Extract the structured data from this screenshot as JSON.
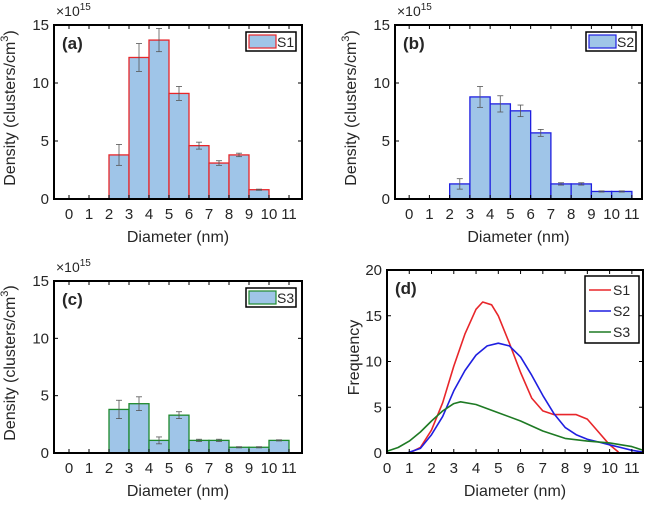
{
  "chart_data": [
    {
      "type": "bar",
      "panel_label": "(a)",
      "legend": "S1",
      "edge_color": "#e8262a",
      "fill_color": "#9fc5e8",
      "multiplier": "×10",
      "multiplier_exp": "15",
      "xlabel": "Diameter (nm)",
      "ylabel": "Density (clusters/cm",
      "ylabel_sup": "3",
      "ylabel_end": ")",
      "ylim": [
        0,
        15
      ],
      "xlim": [
        -0.75,
        11.65
      ],
      "xticks": [
        "0",
        "1",
        "2",
        "3",
        "4",
        "5",
        "6",
        "7",
        "8",
        "9",
        "10",
        "11"
      ],
      "yticks": [
        "0",
        "5",
        "10",
        "15"
      ],
      "bins": [
        [
          2,
          3
        ],
        [
          3,
          4
        ],
        [
          4,
          5
        ],
        [
          5,
          6
        ],
        [
          6,
          7
        ],
        [
          7,
          8
        ],
        [
          8,
          9
        ],
        [
          9,
          10
        ]
      ],
      "values": [
        3.8,
        12.2,
        13.7,
        9.1,
        4.6,
        3.1,
        3.8,
        0.8
      ],
      "errors": [
        0.9,
        1.2,
        1.0,
        0.6,
        0.3,
        0.2,
        0.15,
        0.05
      ]
    },
    {
      "type": "bar",
      "panel_label": "(b)",
      "legend": "S2",
      "edge_color": "#1f1fe0",
      "fill_color": "#9fc5e8",
      "multiplier": "×10",
      "multiplier_exp": "15",
      "xlabel": "Diameter (nm)",
      "ylabel": "Density (clusters/cm",
      "ylabel_sup": "3",
      "ylabel_end": ")",
      "ylim": [
        0,
        15
      ],
      "xlim": [
        -0.7,
        11.5
      ],
      "xticks": [
        "0",
        "1",
        "2",
        "3",
        "4",
        "5",
        "6",
        "7",
        "8",
        "9",
        "10",
        "11"
      ],
      "yticks": [
        "0",
        "5",
        "10",
        "15"
      ],
      "bins": [
        [
          2,
          3
        ],
        [
          3,
          4
        ],
        [
          4,
          5
        ],
        [
          5,
          6
        ],
        [
          6,
          7
        ],
        [
          7,
          8
        ],
        [
          8,
          9
        ],
        [
          9,
          10
        ],
        [
          10,
          11
        ]
      ],
      "values": [
        1.3,
        8.8,
        8.2,
        7.6,
        5.7,
        1.3,
        1.3,
        0.65,
        0.65
      ],
      "errors": [
        0.45,
        0.9,
        0.7,
        0.5,
        0.3,
        0.1,
        0.1,
        0.05,
        0.05
      ]
    },
    {
      "type": "bar",
      "panel_label": "(c)",
      "legend": "S3",
      "edge_color": "#1e8a2e",
      "fill_color": "#9fc5e8",
      "multiplier": "×10",
      "multiplier_exp": "15",
      "xlabel": "Diameter (nm)",
      "ylabel": "Density (clusters/cm",
      "ylabel_sup": "3",
      "ylabel_end": ")",
      "ylim": [
        0,
        15
      ],
      "xlim": [
        -0.75,
        11.65
      ],
      "xticks": [
        "0",
        "1",
        "2",
        "3",
        "4",
        "5",
        "6",
        "7",
        "8",
        "9",
        "10",
        "11"
      ],
      "yticks": [
        "0",
        "5",
        "10",
        "15"
      ],
      "bins": [
        [
          2,
          3
        ],
        [
          3,
          4
        ],
        [
          4,
          5
        ],
        [
          5,
          6
        ],
        [
          6,
          7
        ],
        [
          7,
          8
        ],
        [
          8,
          9
        ],
        [
          9,
          10
        ],
        [
          10,
          11
        ]
      ],
      "values": [
        3.8,
        4.3,
        1.1,
        3.3,
        1.1,
        1.1,
        0.5,
        0.5,
        1.1
      ],
      "errors": [
        0.8,
        0.6,
        0.3,
        0.3,
        0.1,
        0.1,
        0.05,
        0.05,
        0.05
      ]
    },
    {
      "type": "line",
      "panel_label": "(d)",
      "xlabel": "Diameter (nm)",
      "ylabel": "Frequency",
      "ylim": [
        0,
        20
      ],
      "xlim": [
        0,
        11.5
      ],
      "xticks": [
        "0",
        "1",
        "2",
        "3",
        "4",
        "5",
        "6",
        "7",
        "8",
        "9",
        "10",
        "11"
      ],
      "yticks": [
        "0",
        "5",
        "10",
        "15",
        "20"
      ],
      "series": [
        {
          "name": "S1",
          "color": "#e8262a",
          "x": [
            1,
            1.5,
            2,
            2.5,
            3,
            3.5,
            4,
            4.3,
            4.7,
            5,
            5.5,
            6,
            6.5,
            7,
            7.5,
            8,
            8.5,
            9,
            9.5,
            10,
            10.4
          ],
          "y": [
            0,
            0.6,
            2.5,
            5.5,
            9.5,
            13,
            15.7,
            16.5,
            16.2,
            15,
            12,
            8.8,
            6,
            4.6,
            4.2,
            4.2,
            4.2,
            3.7,
            2.3,
            0.9,
            0.1
          ]
        },
        {
          "name": "S2",
          "color": "#1f1fe0",
          "x": [
            0.9,
            1.5,
            2,
            2.5,
            3,
            3.5,
            4,
            4.5,
            5,
            5.5,
            6,
            6.5,
            7,
            7.5,
            8,
            8.5,
            9,
            9.5,
            10,
            10.5,
            11,
            11.5
          ],
          "y": [
            0,
            0.5,
            2,
            4,
            6.8,
            9,
            10.7,
            11.7,
            12,
            11.7,
            10.5,
            8.5,
            6.3,
            4.3,
            2.8,
            2,
            1.5,
            1.2,
            0.9,
            0.6,
            0.3,
            0.1
          ]
        },
        {
          "name": "S3",
          "color": "#1e7a24",
          "x": [
            0,
            0.5,
            1,
            1.5,
            2,
            2.5,
            3,
            3.3,
            4,
            5,
            6,
            7,
            8,
            9,
            10,
            11,
            11.5
          ],
          "y": [
            0.2,
            0.6,
            1.3,
            2.3,
            3.5,
            4.6,
            5.4,
            5.6,
            5.3,
            4.4,
            3.5,
            2.4,
            1.6,
            1.3,
            1.1,
            0.7,
            0.3
          ]
        }
      ]
    }
  ]
}
